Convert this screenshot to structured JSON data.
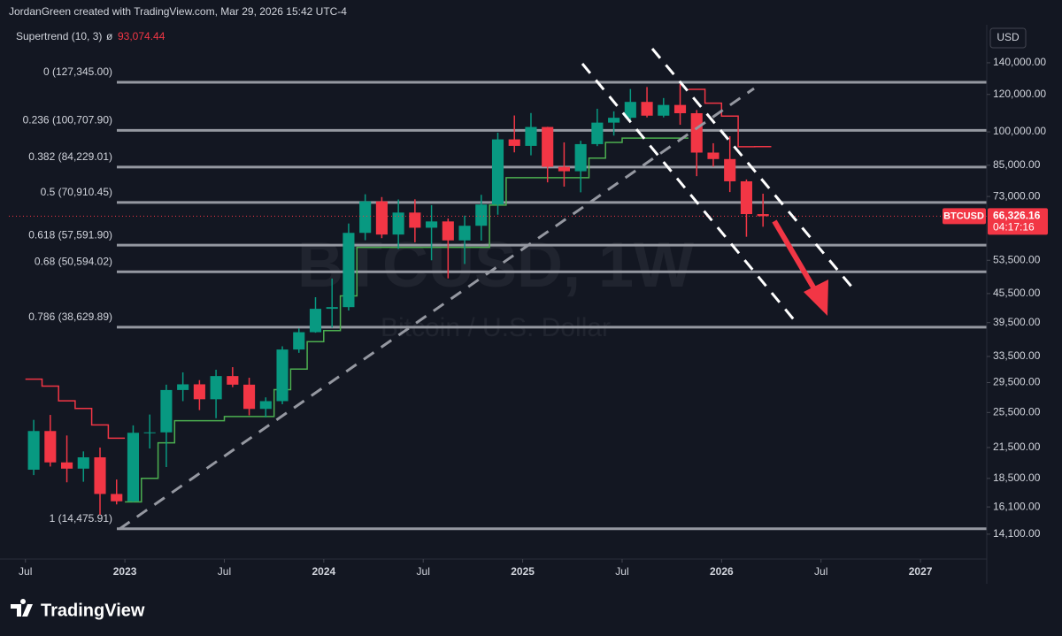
{
  "header": "JordanGreen created with TradingView.com, Mar 29, 2026 15:42 UTC-4",
  "logo": "TradingView",
  "currency": "USD",
  "watermark": {
    "symbol": "BTCUSD, 1W",
    "description": "Bitcoin / U.S. Dollar"
  },
  "chart_data": {
    "type": "candlestick",
    "log_scale": true,
    "up_color": "#089981",
    "down_color": "#f23645",
    "x": [
      "2022-07",
      "2022-08",
      "2022-09",
      "2022-10",
      "2022-11",
      "2022-12",
      "2023-01",
      "2023-02",
      "2023-03",
      "2023-04",
      "2023-05",
      "2023-06",
      "2023-07",
      "2023-08",
      "2023-09",
      "2023-10",
      "2023-11",
      "2023-12",
      "2024-01",
      "2024-02",
      "2024-03",
      "2024-04",
      "2024-05",
      "2024-06",
      "2024-07",
      "2024-08",
      "2024-09",
      "2024-10",
      "2024-11",
      "2024-12",
      "2025-01",
      "2025-02",
      "2025-03",
      "2025-04",
      "2025-05",
      "2025-06",
      "2025-07",
      "2025-08",
      "2025-09",
      "2025-10",
      "2025-11",
      "2025-12",
      "2026-01",
      "2026-02",
      "2026-03"
    ],
    "open": [
      19300,
      23300,
      20000,
      19400,
      20500,
      17150,
      16550,
      23100,
      23150,
      28450,
      29250,
      27200,
      30450,
      29200,
      25950,
      26950,
      34650,
      37700,
      42250,
      42600,
      61150,
      71300,
      60650,
      67500,
      62700,
      64650,
      58950,
      63300,
      70200,
      96400,
      93400,
      102400,
      84350,
      82550,
      94200,
      104600,
      107100,
      115700,
      108200,
      114000,
      109500,
      90400,
      87600,
      78600,
      67000
    ],
    "high": [
      24600,
      25200,
      22800,
      21100,
      21500,
      18400,
      23950,
      25250,
      29200,
      31000,
      29850,
      31400,
      31800,
      30200,
      27450,
      35200,
      38400,
      44700,
      48950,
      64000,
      73800,
      72800,
      71950,
      72000,
      70000,
      65600,
      66500,
      73600,
      99600,
      108300,
      109600,
      102500,
      95000,
      95750,
      111900,
      110500,
      123200,
      124400,
      117900,
      126200,
      111200,
      94600,
      97900,
      79300,
      74000
    ],
    "low": [
      18800,
      19600,
      18150,
      18200,
      15500,
      16300,
      16500,
      21400,
      19550,
      26950,
      25800,
      24800,
      28850,
      25150,
      24900,
      26550,
      34100,
      37600,
      38550,
      41900,
      59000,
      59600,
      56550,
      58400,
      53500,
      49000,
      52550,
      58900,
      66800,
      90500,
      89200,
      78200,
      76600,
      74500,
      93300,
      98200,
      105100,
      107300,
      107300,
      103500,
      80600,
      84400,
      74600,
      60000,
      63000
    ],
    "close": [
      23300,
      20000,
      19400,
      20500,
      17150,
      16550,
      23100,
      23150,
      28450,
      29250,
      27200,
      30450,
      29200,
      25950,
      26950,
      34650,
      37700,
      42250,
      42600,
      61150,
      71300,
      60650,
      67500,
      62700,
      64650,
      58950,
      63300,
      70200,
      96400,
      93400,
      102400,
      84350,
      82550,
      94200,
      104600,
      107100,
      115700,
      108200,
      114000,
      109500,
      90400,
      87600,
      78600,
      67000,
      66326.16
    ],
    "supertrend": {
      "name": "Supertrend (10, 3)",
      "symbol": "ø",
      "value": 93074.44,
      "value_label": "93,074.44",
      "up_color": "#4caf50",
      "down_color": "#f23645",
      "values": [
        30000,
        29000,
        27000,
        26000,
        24000,
        22500,
        16500,
        18500,
        22000,
        24500,
        24500,
        24500,
        25000,
        25000,
        25000,
        28500,
        31500,
        36000,
        38000,
        45000,
        57000,
        57000,
        57000,
        57000,
        57000,
        57000,
        57000,
        57000,
        70000,
        80000,
        80000,
        80000,
        80000,
        80000,
        88000,
        95000,
        97000,
        97000,
        97000,
        97000,
        123000,
        115000,
        108000,
        93000,
        93074.44
      ]
    },
    "last_price": {
      "symbol": "BTCUSD",
      "value": 66326.16,
      "label": "66,326.16",
      "countdown": "04:17:16"
    },
    "fib_levels": [
      {
        "label": "0 (127,345.00)",
        "value": 127345
      },
      {
        "label": "0.236 (100,707.90)",
        "value": 100707.9
      },
      {
        "label": "0.382 (84,229.01)",
        "value": 84229.01
      },
      {
        "label": "0.5 (70,910.45)",
        "value": 70910.45
      },
      {
        "label": "0.618 (57,591.90)",
        "value": 57591.9
      },
      {
        "label": "0.68 (50,594.02)",
        "value": 50594.02
      },
      {
        "label": "0.786 (38,629.89)",
        "value": 38629.89
      },
      {
        "label": "1 (14,475.91)",
        "value": 14475.91
      }
    ],
    "xlim": [
      "2022-06",
      "2027-05"
    ],
    "xticks": [
      {
        "value": "2022-07",
        "label": "Jul"
      },
      {
        "value": "2023-01",
        "label": "2023"
      },
      {
        "value": "2023-07",
        "label": "Jul"
      },
      {
        "value": "2024-01",
        "label": "2024"
      },
      {
        "value": "2024-07",
        "label": "Jul"
      },
      {
        "value": "2025-01",
        "label": "2025"
      },
      {
        "value": "2025-07",
        "label": "Jul"
      },
      {
        "value": "2026-01",
        "label": "2026"
      },
      {
        "value": "2026-07",
        "label": "Jul"
      },
      {
        "value": "2027-01",
        "label": "2027"
      }
    ],
    "ylim": [
      12600,
      167000
    ],
    "yticks": [
      {
        "value": 140000,
        "label": "140,000.00"
      },
      {
        "value": 120000,
        "label": "120,000.00"
      },
      {
        "value": 100000,
        "label": "100,000.00"
      },
      {
        "value": 85000,
        "label": "85,000.00"
      },
      {
        "value": 73000,
        "label": "73,000.00"
      },
      {
        "value": 53500,
        "label": "53,500.00"
      },
      {
        "value": 45500,
        "label": "45,500.00"
      },
      {
        "value": 39500,
        "label": "39,500.00"
      },
      {
        "value": 33500,
        "label": "33,500.00"
      },
      {
        "value": 29500,
        "label": "29,500.00"
      },
      {
        "value": 25500,
        "label": "25,500.00"
      },
      {
        "value": 21500,
        "label": "21,500.00"
      },
      {
        "value": 18500,
        "label": "18,500.00"
      },
      {
        "value": 16100,
        "label": "16,100.00"
      },
      {
        "value": 14100,
        "label": "14,100.00"
      }
    ]
  }
}
